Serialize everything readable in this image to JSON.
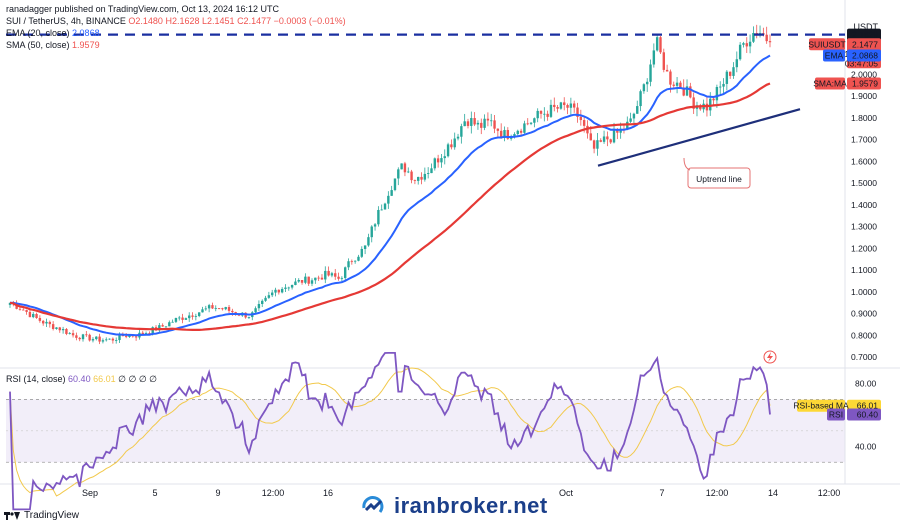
{
  "header": {
    "publisher": "ranadagger published on TradingView.com, Oct 13, 2024 16:12 UTC",
    "symbol_line": "SUI / TetherUS, 4h, BINANCE",
    "ohlc": {
      "o": "O2.1480",
      "h": "H2.1628",
      "l": "L2.1451",
      "c": "C2.1477",
      "chg": "−0.0003 (−0.01%)"
    },
    "ema_line": {
      "label": "EMA (20, close)",
      "value": "2.0868"
    },
    "sma_line": {
      "label": "SMA (50, close)",
      "value": "1.9579"
    },
    "rsi_line": {
      "label": "RSI (14, close)",
      "value": "60.40",
      "value2": "66.01",
      "tail": "∅ ∅ ∅ ∅"
    }
  },
  "currency": "USDT",
  "price_axis": {
    "ticks": [
      "2.0000",
      "1.9000",
      "1.8000",
      "1.7000",
      "1.6000",
      "1.5000",
      "1.4000",
      "1.3000",
      "1.2000",
      "1.1000",
      "1.0000",
      "0.9000",
      "0.8000",
      "0.7000"
    ]
  },
  "rsi_axis": {
    "ticks": [
      "80.00",
      "40.00"
    ]
  },
  "time_axis": {
    "ticks": [
      "Sep",
      "5",
      "9",
      "12:00",
      "16",
      "Oct",
      "7",
      "12:00",
      "14",
      "12:00"
    ]
  },
  "tags": {
    "resistance": {
      "text": "2.1829",
      "color": "#131722"
    },
    "symbol": {
      "text": "SUIUSDT",
      "value": "2.1477",
      "change": "+124.42%",
      "timer": "03:47:05",
      "color": "#ef5350"
    },
    "ema": {
      "text": "EMA",
      "value": "2.0868",
      "color": "#2962ff"
    },
    "sma": {
      "text": "SMA:MA",
      "value": "1.9579",
      "color": "#ef5350"
    },
    "rsi_ma": {
      "text": "RSI-based MA",
      "value": "66.01",
      "color": "#f7c548"
    },
    "rsi": {
      "text": "RSI",
      "value": "60.40",
      "color": "#7e57c2"
    }
  },
  "annotation": {
    "text": "Uptrend line"
  },
  "footer": {
    "brand": "TradingView"
  },
  "watermark": {
    "text": "iranbroker.net"
  },
  "colors": {
    "up": "#26a69a",
    "down": "#ef5350",
    "ema": "#2962ff",
    "sma": "#e53935",
    "rsi": "#7e57c2",
    "rsi_ma": "#f2c94c",
    "resistance": "#1a2fa0",
    "trend": "#1e2f7a"
  },
  "chart_data": {
    "type": "candlestick",
    "timeframe": "4h",
    "symbol": "SUI / TetherUS",
    "y_range": [
      0.65,
      2.25
    ],
    "resistance_level": 2.1829,
    "uptrend_line": [
      {
        "x": "Oct 2",
        "y": 1.58
      },
      {
        "x": "Oct 14",
        "y": 1.84
      }
    ],
    "close_path": [
      0.95,
      0.92,
      0.88,
      0.85,
      0.83,
      0.8,
      0.79,
      0.78,
      0.78,
      0.8,
      0.8,
      0.82,
      0.84,
      0.87,
      0.89,
      0.91,
      0.93,
      0.92,
      0.9,
      0.89,
      0.95,
      1.01,
      1.03,
      1.05,
      1.06,
      1.08,
      1.06,
      1.15,
      1.2,
      1.35,
      1.48,
      1.58,
      1.52,
      1.56,
      1.63,
      1.7,
      1.8,
      1.76,
      1.78,
      1.72,
      1.75,
      1.78,
      1.82,
      1.84,
      1.85,
      1.8,
      1.65,
      1.7,
      1.73,
      1.78,
      1.93,
      2.15,
      1.98,
      1.95,
      1.87,
      1.85,
      1.93,
      2.03,
      2.15,
      2.21,
      2.15
    ],
    "ema_20_last": 2.0868,
    "sma_50_last": 1.9579,
    "rsi_14_last": 60.4,
    "rsi_ma_last": 66.01,
    "rsi_band": [
      30,
      70
    ]
  }
}
